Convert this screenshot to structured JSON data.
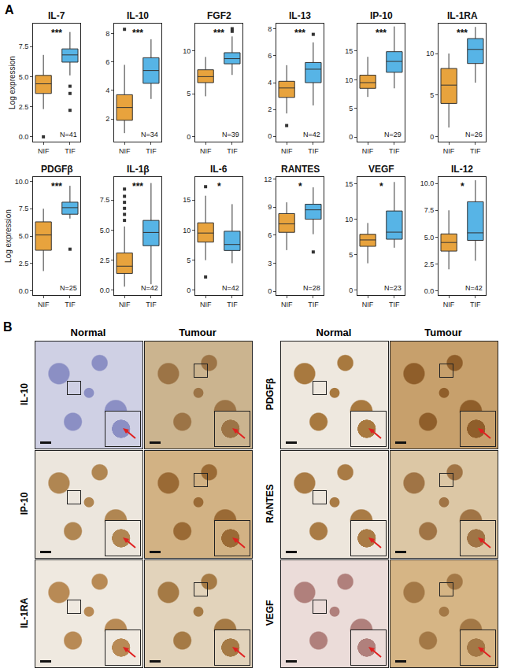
{
  "panel_labels": [
    "A",
    "B"
  ],
  "chart_data": [
    {
      "type": "box",
      "title": "IL-7",
      "significance": "***",
      "categories": [
        "NIF",
        "TIF"
      ],
      "n_label": "N=41",
      "y_label": "Log expression",
      "ylim": [
        -0.4,
        9.4
      ],
      "yticks": [
        {
          "value": 0,
          "label": "0.0"
        },
        {
          "value": 2.5,
          "label": "2.5"
        },
        {
          "value": 5,
          "label": "5.0"
        },
        {
          "value": 7.5,
          "label": "7.5"
        }
      ],
      "series": [
        {
          "name": "NIF",
          "color": "#E8A33D",
          "lower": 2.3,
          "q1": 3.6,
          "median": 4.4,
          "q3": 5.1,
          "upper": 6.8,
          "outliers": [
            0
          ]
        },
        {
          "name": "TIF",
          "color": "#57B4E6",
          "lower": 5.1,
          "q1": 6.2,
          "median": 6.8,
          "q3": 7.3,
          "upper": 8.7,
          "outliers": [
            4.2,
            3.6,
            2.2
          ]
        }
      ]
    },
    {
      "type": "box",
      "title": "IL-10",
      "significance": "***",
      "categories": [
        "NIF",
        "TIF"
      ],
      "n_label": "N=34",
      "ylim": [
        0.4,
        8.7
      ],
      "yticks": [
        2,
        4,
        6,
        8
      ],
      "series": [
        {
          "name": "NIF",
          "color": "#E8A33D",
          "lower": 1.0,
          "q1": 1.9,
          "median": 2.8,
          "q3": 3.7,
          "upper": 5.8,
          "outliers": [
            8.3
          ]
        },
        {
          "name": "TIF",
          "color": "#57B4E6",
          "lower": 3.4,
          "q1": 4.5,
          "median": 5.4,
          "q3": 6.3,
          "upper": 7.6,
          "outliers": []
        }
      ]
    },
    {
      "type": "box",
      "title": "FGF2",
      "significance": "***",
      "categories": [
        "NIF",
        "TIF"
      ],
      "n_label": "N=39",
      "ylim": [
        -0.6,
        13.2
      ],
      "yticks": [
        0,
        5,
        10
      ],
      "series": [
        {
          "name": "NIF",
          "color": "#E8A33D",
          "lower": 4.7,
          "q1": 6.3,
          "median": 7.0,
          "q3": 7.8,
          "upper": 9.3,
          "outliers": []
        },
        {
          "name": "TIF",
          "color": "#57B4E6",
          "lower": 7.2,
          "q1": 8.5,
          "median": 9.1,
          "q3": 9.8,
          "upper": 11.7,
          "outliers": [
            12.3,
            12.6
          ]
        }
      ]
    },
    {
      "type": "box",
      "title": "IL-13",
      "significance": "***",
      "categories": [
        "NIF",
        "TIF"
      ],
      "n_label": "N=42",
      "ylim": [
        -0.4,
        8.4
      ],
      "yticks": [
        0,
        2,
        4,
        6,
        8
      ],
      "series": [
        {
          "name": "NIF",
          "color": "#E8A33D",
          "lower": 1.7,
          "q1": 2.9,
          "median": 3.6,
          "q3": 4.1,
          "upper": 5.3,
          "outliers": [
            0.8
          ]
        },
        {
          "name": "TIF",
          "color": "#57B4E6",
          "lower": 2.3,
          "q1": 4.0,
          "median": 5.0,
          "q3": 5.5,
          "upper": 7.0,
          "outliers": [
            7.6
          ]
        }
      ]
    },
    {
      "type": "box",
      "title": "IP-10",
      "significance": "***",
      "categories": [
        "NIF",
        "TIF"
      ],
      "n_label": "N=29",
      "ylim": [
        -0.8,
        19.8
      ],
      "yticks": [
        0,
        5,
        10,
        15
      ],
      "series": [
        {
          "name": "NIF",
          "color": "#E8A33D",
          "lower": 7.0,
          "q1": 8.5,
          "median": 9.5,
          "q3": 10.8,
          "upper": 14.0,
          "outliers": []
        },
        {
          "name": "TIF",
          "color": "#57B4E6",
          "lower": 8.5,
          "q1": 11.3,
          "median": 13.2,
          "q3": 14.9,
          "upper": 19.3,
          "outliers": []
        }
      ]
    },
    {
      "type": "box",
      "title": "IL-1RA",
      "significance": "***",
      "categories": [
        "NIF",
        "TIF"
      ],
      "n_label": "N=26",
      "ylim": [
        -0.6,
        13.6
      ],
      "yticks": [
        0,
        5,
        10
      ],
      "series": [
        {
          "name": "NIF",
          "color": "#E8A33D",
          "lower": 1.1,
          "q1": 4.0,
          "median": 6.2,
          "q3": 8.2,
          "upper": 10.0,
          "outliers": []
        },
        {
          "name": "TIF",
          "color": "#57B4E6",
          "lower": 6.5,
          "q1": 8.8,
          "median": 10.5,
          "q3": 11.8,
          "upper": 13.2,
          "outliers": []
        }
      ]
    },
    {
      "type": "box",
      "title": "PDGFβ",
      "significance": "***",
      "categories": [
        "NIF",
        "TIF"
      ],
      "n_label": "N=25",
      "y_label": "Log expression",
      "ylim": [
        -0.4,
        10.4
      ],
      "yticks": [
        {
          "value": 0,
          "label": "0.0"
        },
        {
          "value": 2.5,
          "label": "2.5"
        },
        {
          "value": 5,
          "label": "5.0"
        },
        {
          "value": 7.5,
          "label": "7.5"
        },
        {
          "value": 10,
          "label": "10.0"
        }
      ],
      "series": [
        {
          "name": "NIF",
          "color": "#E8A33D",
          "lower": 1.8,
          "q1": 3.7,
          "median": 5.1,
          "q3": 6.3,
          "upper": 7.5,
          "outliers": []
        },
        {
          "name": "TIF",
          "color": "#57B4E6",
          "lower": 6.6,
          "q1": 7.0,
          "median": 7.6,
          "q3": 8.1,
          "upper": 9.6,
          "outliers": [
            3.8
          ]
        }
      ]
    },
    {
      "type": "box",
      "title": "IL-1β",
      "significance": "***",
      "categories": [
        "NIF",
        "TIF"
      ],
      "n_label": "N=42",
      "ylim": [
        -0.4,
        9.4
      ],
      "yticks": [
        {
          "value": 0,
          "label": "0.0"
        },
        {
          "value": 2.5,
          "label": "2.5"
        },
        {
          "value": 5,
          "label": "5.0"
        },
        {
          "value": 7.5,
          "label": "7.5"
        }
      ],
      "series": [
        {
          "name": "NIF",
          "color": "#E8A33D",
          "lower": 0.3,
          "q1": 1.4,
          "median": 2.0,
          "q3": 3.1,
          "upper": 5.3,
          "outliers": [
            5.8,
            6.3,
            6.8,
            7.3,
            7.8,
            8.4
          ]
        },
        {
          "name": "TIF",
          "color": "#57B4E6",
          "lower": 0.5,
          "q1": 3.7,
          "median": 4.8,
          "q3": 5.8,
          "upper": 8.9,
          "outliers": []
        }
      ]
    },
    {
      "type": "box",
      "title": "IL-6",
      "significance": "*",
      "categories": [
        "NIF",
        "TIF"
      ],
      "n_label": "N=42",
      "ylim": [
        -0.8,
        18.8
      ],
      "yticks": [
        0,
        5,
        10,
        15
      ],
      "series": [
        {
          "name": "NIF",
          "color": "#E8A33D",
          "lower": 5.0,
          "q1": 8.0,
          "median": 9.5,
          "q3": 11.2,
          "upper": 15.7,
          "outliers": [
            2.2,
            17.2
          ]
        },
        {
          "name": "TIF",
          "color": "#57B4E6",
          "lower": 4.5,
          "q1": 6.6,
          "median": 7.6,
          "q3": 9.8,
          "upper": 14.3,
          "outliers": []
        }
      ]
    },
    {
      "type": "box",
      "title": "RANTES",
      "significance": "*",
      "categories": [
        "NIF",
        "TIF"
      ],
      "n_label": "N=28",
      "ylim": [
        -0.4,
        12.2
      ],
      "yticks": [
        0,
        3,
        6,
        9,
        12
      ],
      "series": [
        {
          "name": "NIF",
          "color": "#E8A33D",
          "lower": 4.4,
          "q1": 6.3,
          "median": 7.2,
          "q3": 8.3,
          "upper": 9.5,
          "outliers": []
        },
        {
          "name": "TIF",
          "color": "#57B4E6",
          "lower": 6.1,
          "q1": 7.7,
          "median": 8.7,
          "q3": 9.3,
          "upper": 11.1,
          "outliers": [
            4.2
          ]
        }
      ]
    },
    {
      "type": "box",
      "title": "VEGF",
      "significance": "*",
      "categories": [
        "NIF",
        "TIF"
      ],
      "n_label": "N=23",
      "ylim": [
        -0.7,
        16
      ],
      "yticks": [
        0,
        5,
        10,
        15
      ],
      "series": [
        {
          "name": "NIF",
          "color": "#E8A33D",
          "lower": 3.8,
          "q1": 6.2,
          "median": 7.1,
          "q3": 7.9,
          "upper": 9.5,
          "outliers": []
        },
        {
          "name": "TIF",
          "color": "#57B4E6",
          "lower": 6.0,
          "q1": 7.2,
          "median": 8.2,
          "q3": 11.2,
          "upper": 15.3,
          "outliers": []
        }
      ]
    },
    {
      "type": "box",
      "title": "IL-12",
      "significance": "*",
      "categories": [
        "NIF",
        "TIF"
      ],
      "n_label": "N=42",
      "ylim": [
        -0.4,
        10.6
      ],
      "yticks": [
        {
          "value": 0,
          "label": "0.0"
        },
        {
          "value": 2.5,
          "label": "2.5"
        },
        {
          "value": 5,
          "label": "5.0"
        },
        {
          "value": 7.5,
          "label": "7.5"
        },
        {
          "value": 10,
          "label": "10.0"
        }
      ],
      "series": [
        {
          "name": "NIF",
          "color": "#E8A33D",
          "lower": 2.0,
          "q1": 3.7,
          "median": 4.5,
          "q3": 5.3,
          "upper": 7.5,
          "outliers": []
        },
        {
          "name": "TIF",
          "color": "#57B4E6",
          "lower": 2.8,
          "q1": 4.7,
          "median": 5.4,
          "q3": 8.3,
          "upper": 10.3,
          "outliers": []
        }
      ]
    }
  ],
  "panel_b": {
    "column_headers": [
      "Normal",
      "Tumour"
    ],
    "groups": [
      {
        "markers": [
          "IL-10",
          "IP-10",
          "IL-1RA"
        ]
      },
      {
        "markers": [
          "PDGFβ",
          "RANTES",
          "VEGF"
        ]
      }
    ]
  }
}
